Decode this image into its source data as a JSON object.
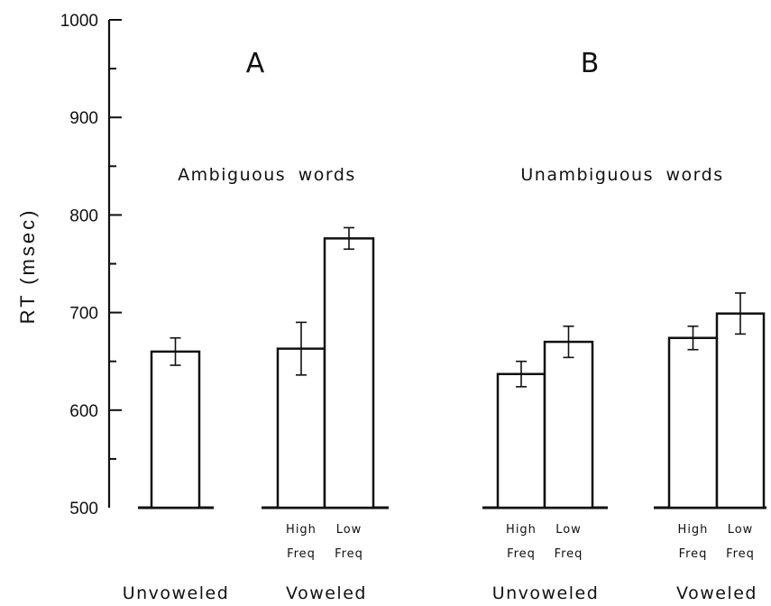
{
  "chart_data": {
    "type": "bar",
    "ylabel": "RT (msec)",
    "ylim": [
      500,
      1000
    ],
    "yticks": [
      "500",
      "600",
      "700",
      "800",
      "900",
      "1000"
    ],
    "grid": false,
    "panels": [
      {
        "letter": "A",
        "subtitle": "Ambiguous words",
        "groups": [
          {
            "label": "Unvoweled",
            "bars": [
              {
                "label": "",
                "label2": "",
                "value": 660,
                "err": 14
              }
            ]
          },
          {
            "label": "Voweled",
            "bars": [
              {
                "label": "High",
                "label2": "Freq",
                "value": 663,
                "err": 27
              },
              {
                "label": "Low",
                "label2": "Freq",
                "value": 776,
                "err": 11
              }
            ]
          }
        ]
      },
      {
        "letter": "B",
        "subtitle": "Unambiguous words",
        "groups": [
          {
            "label": "Unvoweled",
            "bars": [
              {
                "label": "High",
                "label2": "Freq",
                "value": 637,
                "err": 13
              },
              {
                "label": "Low",
                "label2": "Freq",
                "value": 670,
                "err": 16
              }
            ]
          },
          {
            "label": "Voweled",
            "bars": [
              {
                "label": "High",
                "label2": "Freq",
                "value": 674,
                "err": 12
              },
              {
                "label": "Low",
                "label2": "Freq",
                "value": 699,
                "err": 21
              }
            ]
          }
        ]
      }
    ]
  }
}
